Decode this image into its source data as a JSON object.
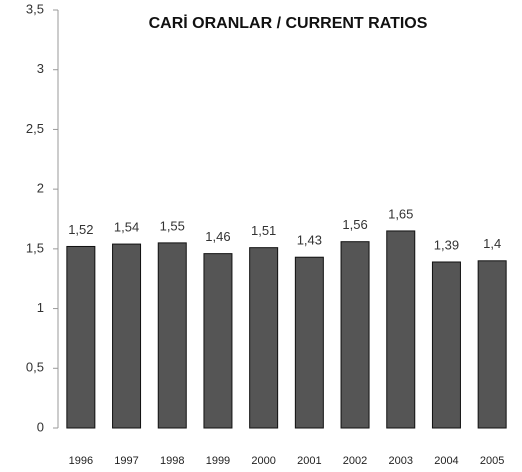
{
  "chart_data": {
    "type": "bar",
    "title": "CARİ ORANLAR / CURRENT RATIOS",
    "categories": [
      "1996",
      "1997",
      "1998",
      "1999",
      "2000",
      "2001",
      "2002",
      "2003",
      "2004",
      "2005"
    ],
    "values": [
      1.52,
      1.54,
      1.55,
      1.46,
      1.51,
      1.43,
      1.56,
      1.65,
      1.39,
      1.4
    ],
    "value_labels": [
      "1,52",
      "1,54",
      "1,55",
      "1,46",
      "1,51",
      "1,43",
      "1,56",
      "1,65",
      "1,39",
      "1,4"
    ],
    "color": "#555555",
    "ylim": [
      0,
      3.5
    ],
    "yticks": [
      0,
      {
        "value": 0.5,
        "label": "0,5"
      },
      1,
      {
        "value": 1.5,
        "label": "1,5"
      },
      2,
      {
        "value": 2.5,
        "label": "2,5"
      },
      3,
      {
        "value": 3.5,
        "label": "3,5"
      }
    ],
    "grid": false
  }
}
